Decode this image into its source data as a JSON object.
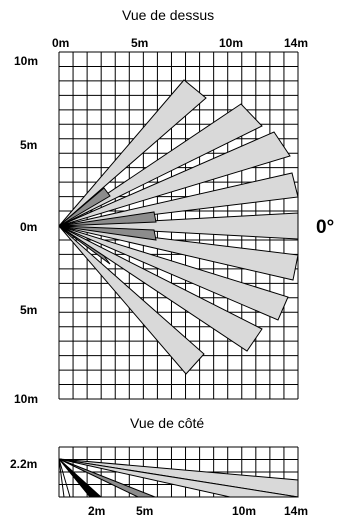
{
  "top_view": {
    "title": "Vue de dessus",
    "x_labels": [
      "0m",
      "5m",
      "10m",
      "14m"
    ],
    "y_labels": [
      "10m",
      "5m",
      "0m",
      "5m",
      "10m"
    ],
    "angle_label": "0°"
  },
  "side_view": {
    "title": "Vue de côté",
    "height_label": "2.2m",
    "x_labels": [
      "2m",
      "5m",
      "10m",
      "14m"
    ]
  },
  "colors": {
    "grid": "#000000",
    "beam_light": "#d9d9d9",
    "beam_dark": "#8c8c8c",
    "beam_black": "#000000"
  }
}
